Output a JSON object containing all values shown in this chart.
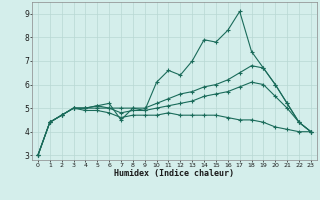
{
  "xlabel": "Humidex (Indice chaleur)",
  "background_color": "#d4eeeb",
  "grid_color": "#b8d8d4",
  "line_color": "#1a6b5a",
  "xlim": [
    -0.5,
    23.5
  ],
  "ylim": [
    2.8,
    9.5
  ],
  "xticks": [
    0,
    1,
    2,
    3,
    4,
    5,
    6,
    7,
    8,
    9,
    10,
    11,
    12,
    13,
    14,
    15,
    16,
    17,
    18,
    19,
    20,
    21,
    22,
    23
  ],
  "yticks": [
    3,
    4,
    5,
    6,
    7,
    8,
    9
  ],
  "series": [
    {
      "x": [
        0,
        1,
        2,
        3,
        4,
        5,
        6,
        7,
        8,
        9,
        10,
        11,
        12,
        13,
        14,
        15,
        16,
        17,
        18,
        19,
        20,
        21,
        22,
        23
      ],
      "y": [
        3.0,
        4.4,
        4.7,
        5.0,
        5.0,
        5.1,
        5.2,
        4.5,
        5.0,
        4.9,
        6.1,
        6.6,
        6.4,
        7.0,
        7.9,
        7.8,
        8.3,
        9.1,
        7.4,
        6.7,
        6.0,
        5.2,
        4.4,
        4.0
      ]
    },
    {
      "x": [
        0,
        1,
        2,
        3,
        4,
        5,
        6,
        7,
        8,
        9,
        10,
        11,
        12,
        13,
        14,
        15,
        16,
        17,
        18,
        19,
        20,
        21,
        22,
        23
      ],
      "y": [
        3.0,
        4.4,
        4.7,
        5.0,
        5.0,
        5.1,
        5.0,
        5.0,
        5.0,
        5.0,
        5.2,
        5.4,
        5.6,
        5.7,
        5.9,
        6.0,
        6.2,
        6.5,
        6.8,
        6.7,
        6.0,
        5.2,
        4.4,
        4.0
      ]
    },
    {
      "x": [
        0,
        1,
        2,
        3,
        4,
        5,
        6,
        7,
        8,
        9,
        10,
        11,
        12,
        13,
        14,
        15,
        16,
        17,
        18,
        19,
        20,
        21,
        22,
        23
      ],
      "y": [
        3.0,
        4.4,
        4.7,
        5.0,
        5.0,
        5.0,
        5.0,
        4.8,
        4.9,
        4.9,
        5.0,
        5.1,
        5.2,
        5.3,
        5.5,
        5.6,
        5.7,
        5.9,
        6.1,
        6.0,
        5.5,
        5.0,
        4.4,
        4.0
      ]
    },
    {
      "x": [
        0,
        1,
        2,
        3,
        4,
        5,
        6,
        7,
        8,
        9,
        10,
        11,
        12,
        13,
        14,
        15,
        16,
        17,
        18,
        19,
        20,
        21,
        22,
        23
      ],
      "y": [
        3.0,
        4.4,
        4.7,
        5.0,
        4.9,
        4.9,
        4.8,
        4.6,
        4.7,
        4.7,
        4.7,
        4.8,
        4.7,
        4.7,
        4.7,
        4.7,
        4.6,
        4.5,
        4.5,
        4.4,
        4.2,
        4.1,
        4.0,
        4.0
      ]
    }
  ]
}
